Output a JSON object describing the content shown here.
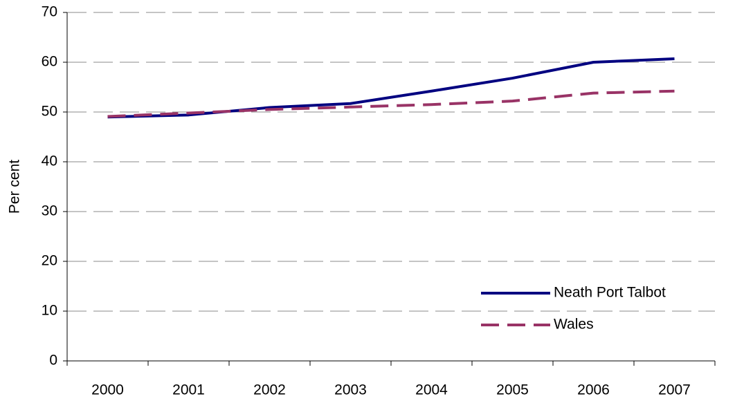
{
  "chart_data": {
    "type": "line",
    "y_label": "Per cent",
    "categories": [
      "2000",
      "2001",
      "2002",
      "2003",
      "2004",
      "2005",
      "2006",
      "2007"
    ],
    "series": [
      {
        "name": "Neath Port Talbot",
        "color": "#000080",
        "dash": false,
        "values": [
          49.0,
          49.4,
          50.9,
          51.7,
          54.2,
          56.8,
          60.0,
          60.7
        ]
      },
      {
        "name": "Wales",
        "color": "#993366",
        "dash": true,
        "values": [
          49.1,
          49.8,
          50.5,
          51.0,
          51.5,
          52.2,
          53.8,
          54.2
        ]
      }
    ],
    "ylim": [
      0,
      70
    ],
    "yticks": [
      0,
      10,
      20,
      30,
      40,
      50,
      60,
      70
    ],
    "grid": true,
    "legend": "bottom-right"
  }
}
